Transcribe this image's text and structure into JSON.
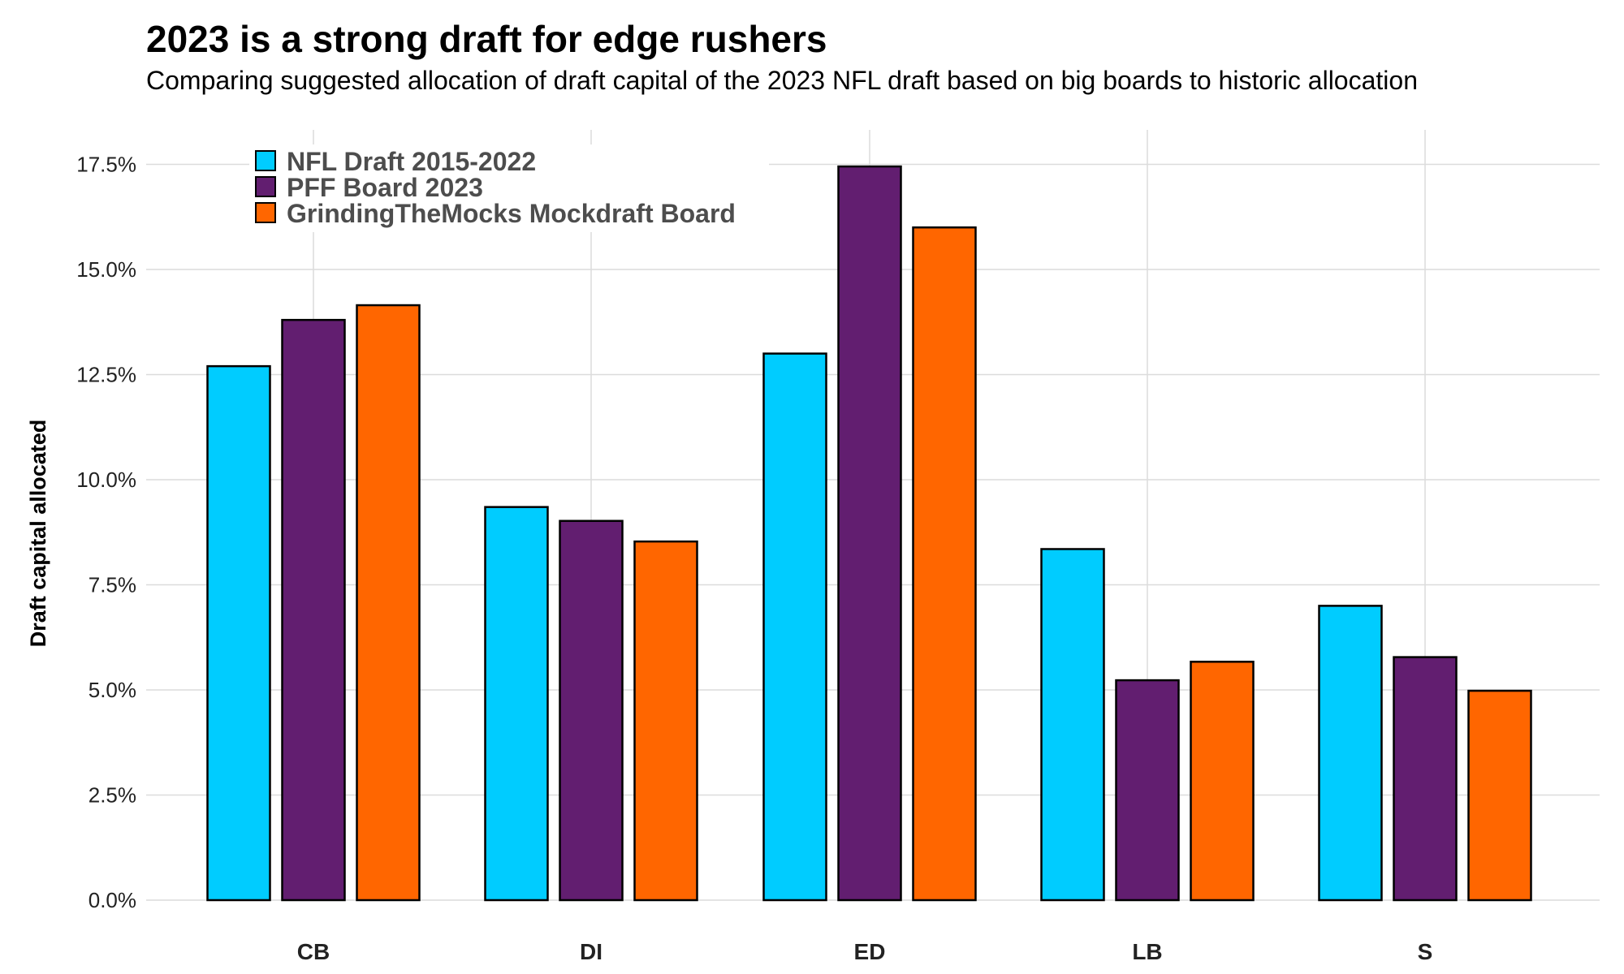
{
  "chart_data": {
    "type": "bar",
    "title": "2023 is a strong draft for edge rushers",
    "subtitle": "Comparing suggested allocation of draft capital of the 2023 NFL draft based on big boards to historic allocation",
    "xlabel": "",
    "ylabel": "Draft capital allocated",
    "ylim": [
      0,
      0.18
    ],
    "yticks": [
      0,
      0.025,
      0.05,
      0.075,
      0.1,
      0.125,
      0.15,
      0.175
    ],
    "ytick_labels": [
      "0.0%",
      "2.5%",
      "5.0%",
      "7.5%",
      "10.0%",
      "12.5%",
      "15.0%",
      "17.5%"
    ],
    "categories": [
      "CB",
      "DI",
      "ED",
      "LB",
      "S"
    ],
    "series": [
      {
        "name": "NFL Draft 2015-2022",
        "color": "#00ccff",
        "values": [
          0.127,
          0.0935,
          0.13,
          0.0835,
          0.07
        ]
      },
      {
        "name": "PFF Board 2023",
        "color": "#621e70",
        "values": [
          0.138,
          0.0902,
          0.1745,
          0.0523,
          0.0578
        ]
      },
      {
        "name": "GrindingTheMocks Mockdraft Board",
        "color": "#ff6600",
        "values": [
          0.1415,
          0.0853,
          0.16,
          0.0567,
          0.0498
        ]
      }
    ],
    "grid": true,
    "legend_position": "top-left"
  }
}
